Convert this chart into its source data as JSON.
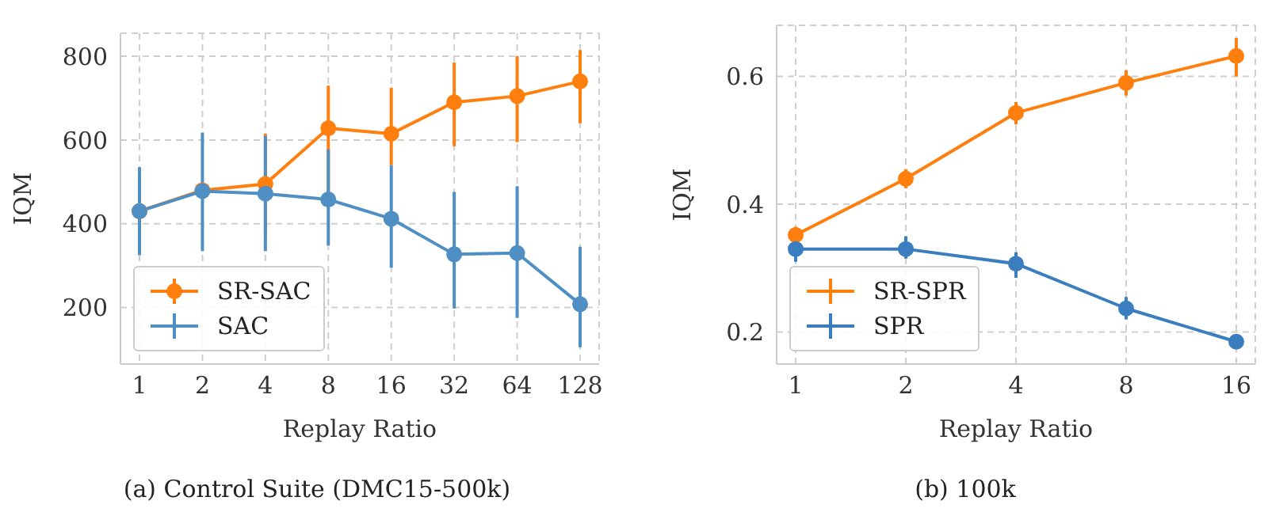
{
  "chart_data": [
    {
      "type": "line",
      "xlabel": "Replay Ratio",
      "ylabel": "IQM",
      "categories": [
        "1",
        "2",
        "4",
        "8",
        "16",
        "32",
        "64",
        "128"
      ],
      "ylim": [
        65,
        855
      ],
      "yticks": [
        200,
        400,
        600,
        800
      ],
      "grid": true,
      "legend": "bottom left",
      "marker": "circle",
      "line_style": "solid",
      "annotations": [
        "(a) Control Suite (DMC15-500k)"
      ],
      "series": [
        {
          "name": "SR-SAC",
          "color": "#ff7f0e",
          "values": [
            430,
            480,
            495,
            628,
            615,
            690,
            705,
            740
          ],
          "errors": [
            null,
            null,
            [
              370,
              615
            ],
            [
              470,
              730
            ],
            [
              540,
              725
            ],
            [
              585,
              785
            ],
            [
              595,
              800
            ],
            [
              640,
              815
            ]
          ]
        },
        {
          "name": "SAC",
          "color": "#4f8fc4",
          "values": [
            430,
            478,
            472,
            458,
            412,
            327,
            330,
            208
          ],
          "errors": [
            [
              325,
              535
            ],
            [
              335,
              618
            ],
            [
              335,
              610
            ],
            [
              348,
              578
            ],
            [
              295,
              540
            ],
            [
              198,
              476
            ],
            [
              175,
              490
            ],
            [
              105,
              345
            ]
          ]
        }
      ]
    },
    {
      "type": "line",
      "xlabel": "Replay Ratio",
      "ylabel": "IQM",
      "categories": [
        "1",
        "2",
        "4",
        "8",
        "16"
      ],
      "ylim": [
        0.15,
        0.68
      ],
      "yticks": [
        0.2,
        0.4,
        0.6
      ],
      "grid": true,
      "legend": "bottom left",
      "marker": "circle",
      "line_style": "solid",
      "annotations": [
        "(b) 100k"
      ],
      "series": [
        {
          "name": "SR-SPR",
          "color": "#ff7f0e",
          "values": [
            0.352,
            0.44,
            0.543,
            0.59,
            0.632
          ],
          "errors": [
            [
              0.34,
              0.365
            ],
            [
              0.425,
              0.455
            ],
            [
              0.525,
              0.56
            ],
            [
              0.57,
              0.61
            ],
            [
              0.6,
              0.66
            ]
          ]
        },
        {
          "name": "SPR",
          "color": "#3a7ebf",
          "values": [
            0.33,
            0.33,
            0.307,
            0.237,
            0.185
          ],
          "errors": [
            [
              0.31,
              0.345
            ],
            [
              0.315,
              0.35
            ],
            [
              0.285,
              0.325
            ],
            [
              0.22,
              0.255
            ],
            [
              0.18,
              0.19
            ]
          ]
        }
      ]
    }
  ]
}
